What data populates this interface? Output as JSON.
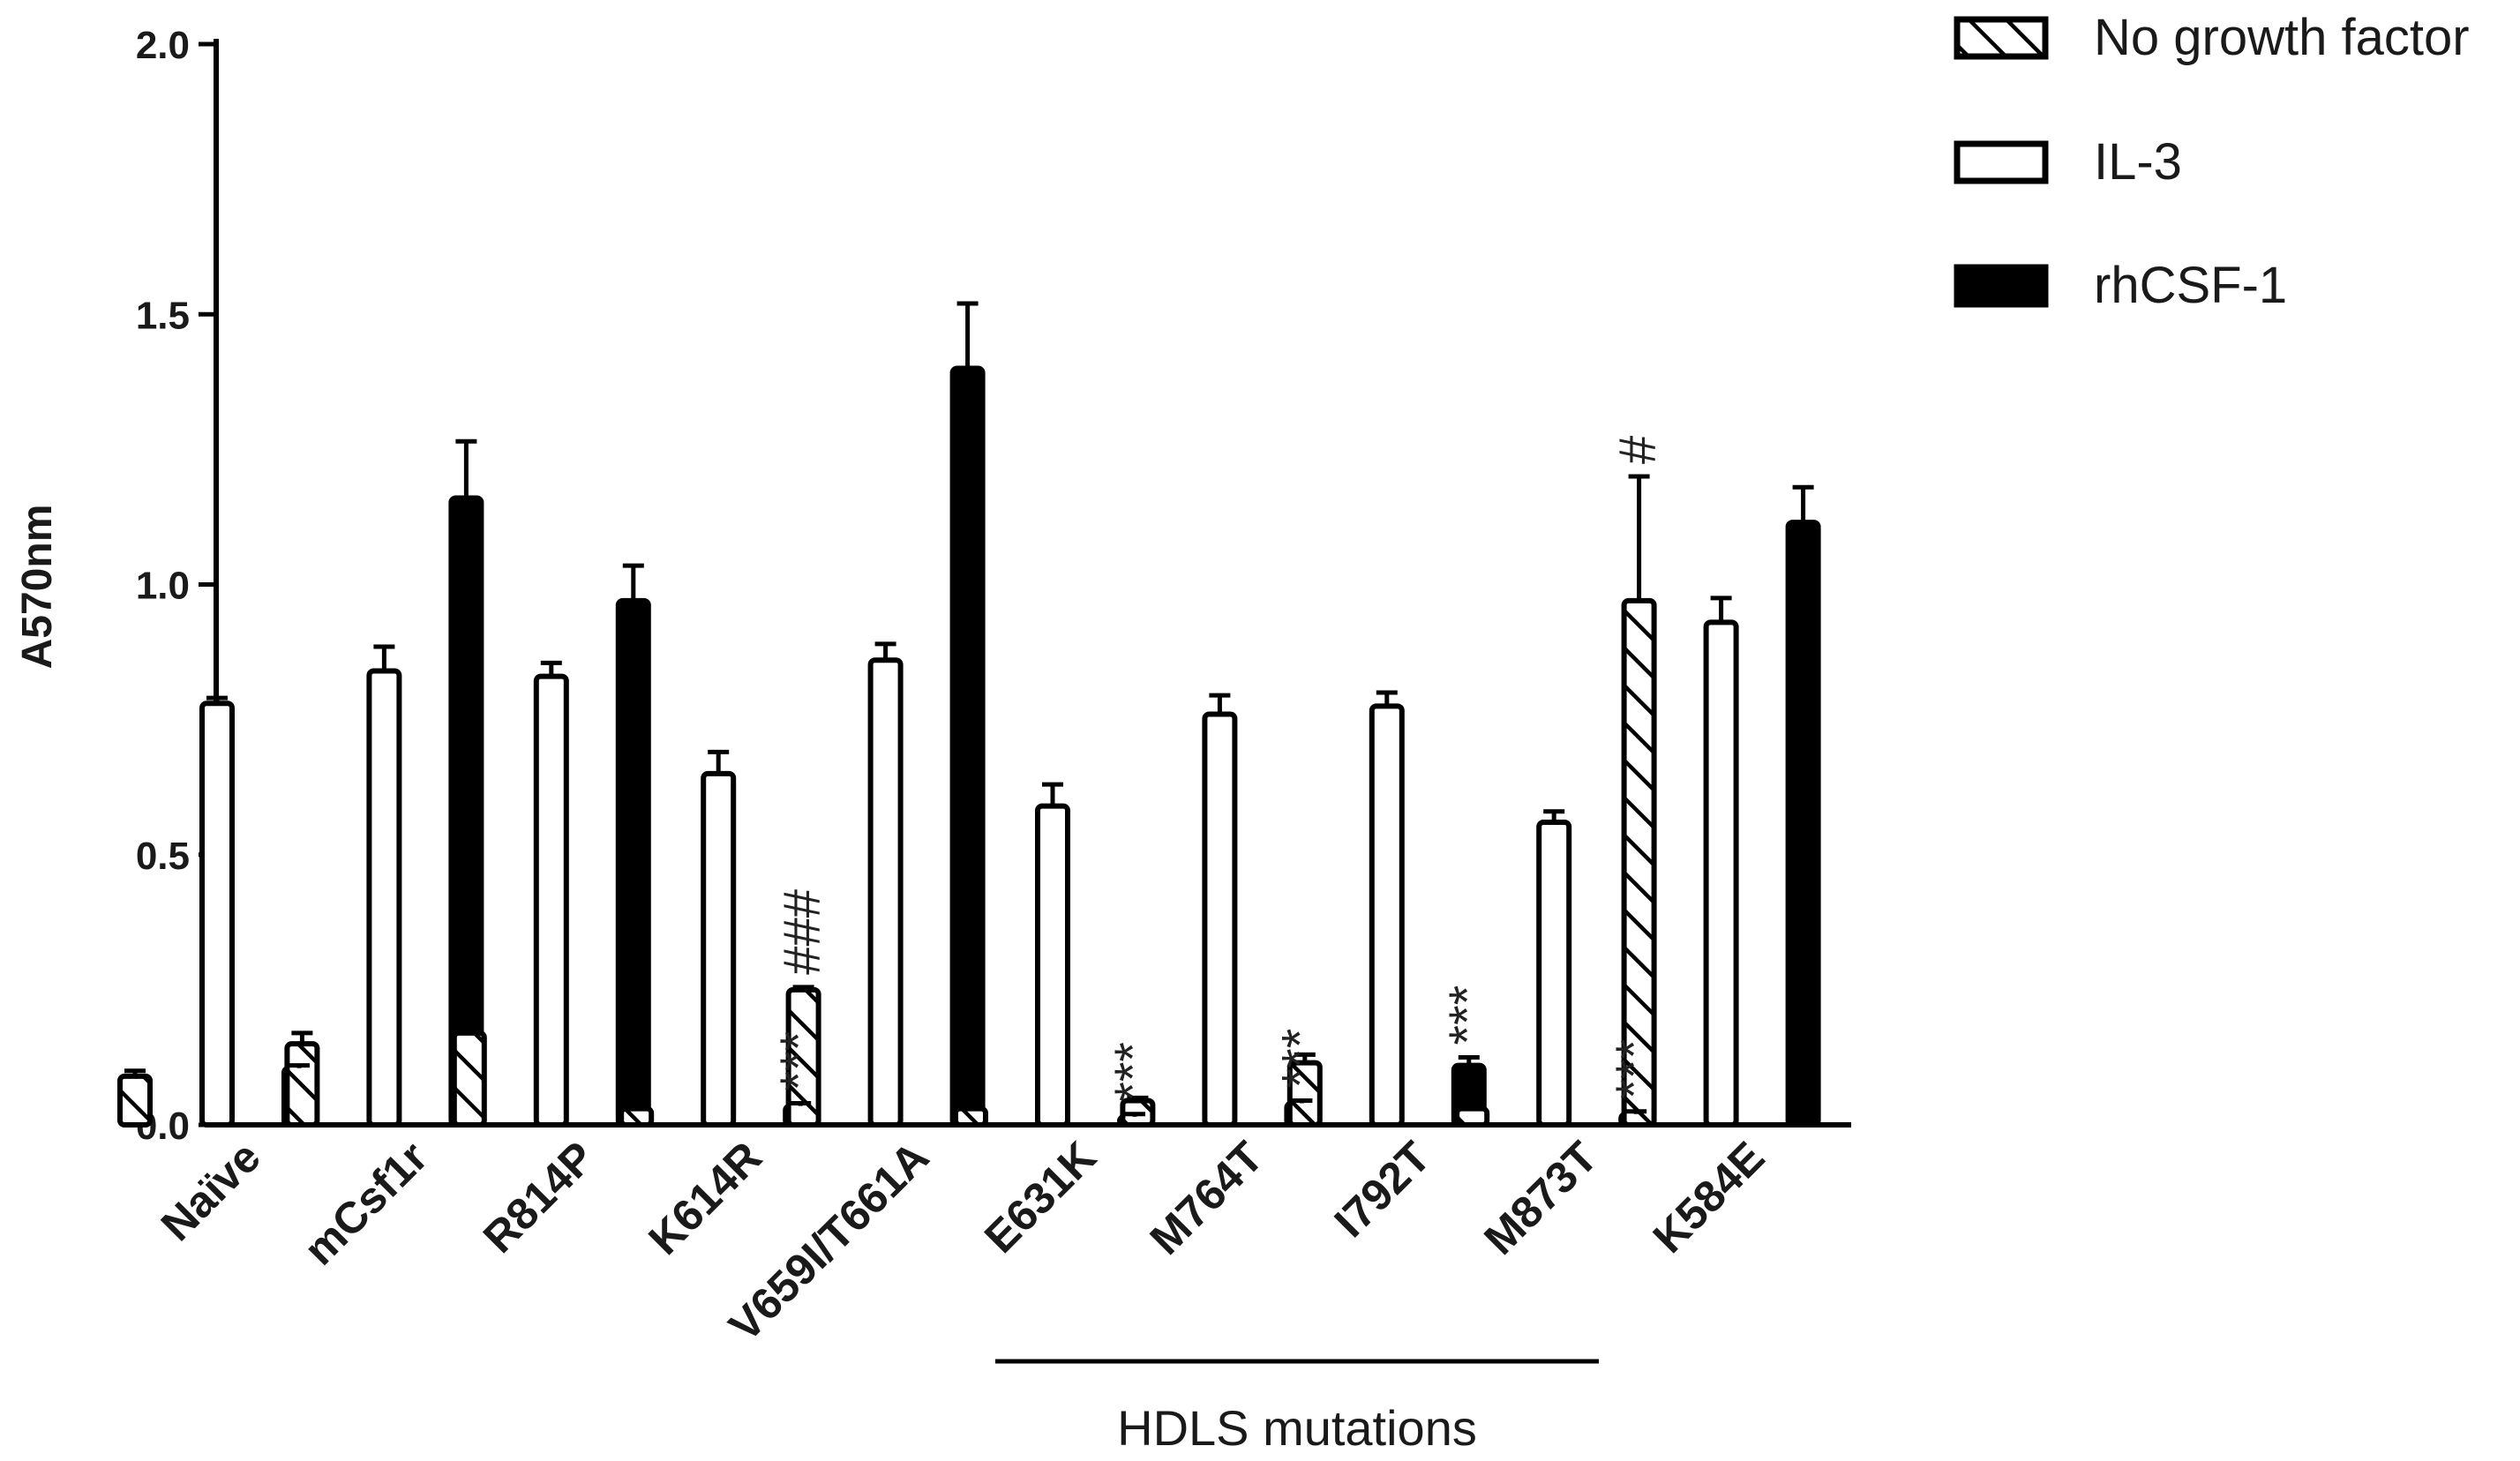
{
  "chart_data": {
    "type": "bar",
    "ylabel": "A570nm",
    "ylim": [
      0,
      2.0
    ],
    "yticks": [
      "0.0",
      "0.5",
      "1.0",
      "1.5",
      "2.0"
    ],
    "legend_position": "top-right",
    "categories": [
      "Naïve",
      "mCsf1r",
      "R814P",
      "K614R",
      "V659I/T661A",
      "E631K",
      "M764T",
      "I792T",
      "M873T",
      "K584E"
    ],
    "series": [
      {
        "name": "No growth factor",
        "pattern": "hatched",
        "color": "#ffffff",
        "values": [
          0.09,
          0.15,
          0.17,
          0.03,
          0.25,
          0.03,
          0.045,
          0.115,
          0.03,
          0.97
        ],
        "errors": [
          0.01,
          0.02,
          0.01,
          0.005,
          0.005,
          0.005,
          0.005,
          0.015,
          0.005,
          0.23
        ]
      },
      {
        "name": "IL-3",
        "pattern": "open",
        "color": "#ffffff",
        "values": [
          0.78,
          0.84,
          0.83,
          0.65,
          0.86,
          0.59,
          0.76,
          0.775,
          0.56,
          0.93
        ],
        "errors": [
          0.01,
          0.045,
          0.025,
          0.04,
          0.03,
          0.04,
          0.035,
          0.025,
          0.02,
          0.045
        ]
      },
      {
        "name": "rhCSF-1",
        "pattern": "solid",
        "color": "#000000",
        "values": [
          0.105,
          1.16,
          0.97,
          0.035,
          1.4,
          0.015,
          0.04,
          0.11,
          0.02,
          1.115
        ],
        "errors": [
          0.005,
          0.105,
          0.065,
          0.005,
          0.12,
          0.005,
          0.005,
          0.015,
          0.005,
          0.065
        ]
      }
    ],
    "annotations": [
      {
        "text": "***",
        "category": "K614R",
        "series": "rhCSF-1"
      },
      {
        "text": "###",
        "category": "V659I/T661A",
        "series": "No growth factor"
      },
      {
        "text": "***",
        "category": "E631K",
        "series": "rhCSF-1"
      },
      {
        "text": "***",
        "category": "M764T",
        "series": "rhCSF-1"
      },
      {
        "text": "***",
        "category": "I792T",
        "series": "rhCSF-1"
      },
      {
        "text": "***",
        "category": "M873T",
        "series": "rhCSF-1"
      },
      {
        "text": "#",
        "category": "K584E",
        "series": "No growth factor"
      }
    ],
    "group_label": "HDLS mutations",
    "group_span": [
      "E631K",
      "M873T"
    ]
  }
}
